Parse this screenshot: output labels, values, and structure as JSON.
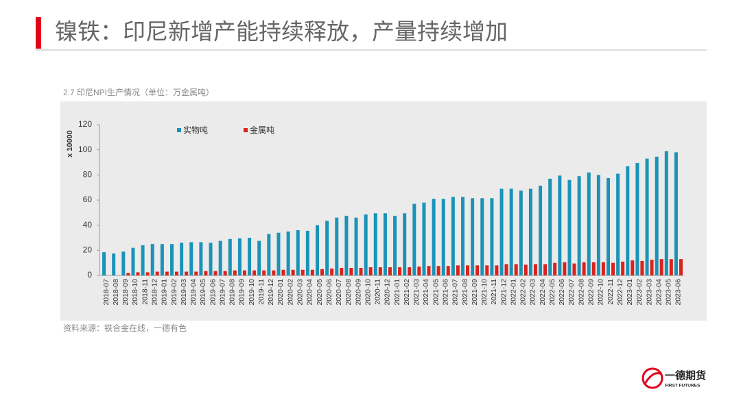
{
  "slide": {
    "title": "镍铁：印尼新增产能持续释放，产量持续增加",
    "logo_name": "一德期货",
    "logo_sub": "FIRST FUTURES"
  },
  "chart_data": {
    "type": "bar",
    "title": "2.7 印尼NPI生产情况（单位：万金属吨）",
    "y_label": "x 10000",
    "source": "资料来源：铁合金在线，一德有色",
    "categories": [
      "2018-07",
      "2018-08",
      "2018-09",
      "2018-10",
      "2018-11",
      "2018-12",
      "2019-01",
      "2019-02",
      "2019-03",
      "2019-04",
      "2019-05",
      "2019-06",
      "2019-07",
      "2019-08",
      "2019-09",
      "2019-10",
      "2019-11",
      "2019-12",
      "2020-01",
      "2020-02",
      "2020-03",
      "2020-04",
      "2020-05",
      "2020-06",
      "2020-07",
      "2020-08",
      "2020-09",
      "2020-10",
      "2020-11",
      "2020-12",
      "2021-01",
      "2021-02",
      "2021-03",
      "2021-04",
      "2021-05",
      "2021-06",
      "2021-07",
      "2021-08",
      "2021-09",
      "2021-10",
      "2021-11",
      "2021-12",
      "2022-01",
      "2022-02",
      "2022-03",
      "2022-04",
      "2022-05",
      "2022-06",
      "2022-07",
      "2022-08",
      "2022-09",
      "2022-10",
      "2022-11",
      "2022-12",
      "2023-01",
      "2023-02",
      "2023-03",
      "2023-04",
      "2023-05",
      "2023-06"
    ],
    "series": [
      {
        "name": "实物吨",
        "color": "#1b93b8",
        "values": [
          18.5,
          17.5,
          19,
          22,
          24,
          25,
          25,
          25,
          26,
          26.5,
          26.5,
          26,
          27.5,
          29,
          29.5,
          30,
          27.5,
          33,
          34,
          35,
          36,
          35.5,
          40,
          43.5,
          46,
          47.5,
          46,
          48.5,
          49.5,
          49.5,
          47.5,
          49.5,
          57,
          58,
          61,
          61,
          62.5,
          62.5,
          61.5,
          61.5,
          61.5,
          69,
          69,
          67.5,
          69,
          71.5,
          77,
          79.5,
          76,
          79,
          82,
          80,
          77.5,
          81,
          87,
          89.5,
          93,
          94.5,
          99,
          98
        ]
      },
      {
        "name": "金属吨",
        "color": "#d9231c",
        "values": [
          null,
          null,
          2,
          2.5,
          2.5,
          3,
          3,
          3,
          3,
          3,
          3.5,
          3.5,
          3.5,
          4,
          4,
          4,
          4,
          4,
          4.5,
          4.5,
          4.5,
          4.5,
          5,
          5.5,
          6,
          6,
          6,
          6.5,
          6.5,
          6.5,
          6.5,
          6.5,
          7,
          7.5,
          7.5,
          7.5,
          8,
          8,
          8,
          8,
          8,
          9,
          9,
          8.5,
          9,
          9,
          10,
          10.5,
          9.5,
          10.5,
          10.5,
          10.5,
          10,
          11,
          12,
          11.5,
          12.5,
          13,
          13,
          13
        ]
      }
    ],
    "ylim": [
      0,
      120
    ],
    "yticks": [
      0,
      20,
      40,
      60,
      80,
      100,
      120
    ],
    "grid": false
  }
}
